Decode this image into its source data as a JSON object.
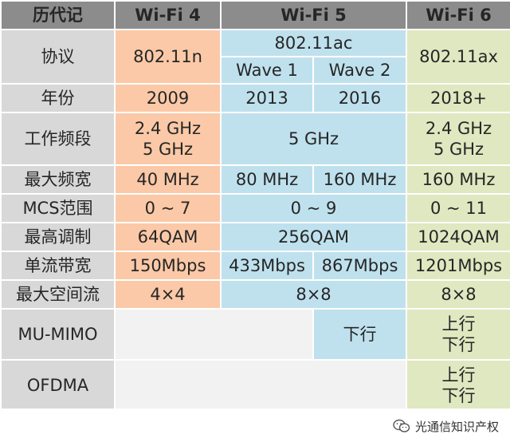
{
  "header": {
    "label": "历代记",
    "wifi4": "Wi-Fi 4",
    "wifi5": "Wi-Fi 5",
    "wifi6": "Wi-Fi 6"
  },
  "rows": {
    "protocol": {
      "label": "协议",
      "wifi4": "802.11n",
      "wifi5": "802.11ac",
      "wave1": "Wave 1",
      "wave2": "Wave 2",
      "wifi6": "802.11ax"
    },
    "year": {
      "label": "年份",
      "wifi4": "2009",
      "wave1": "2013",
      "wave2": "2016",
      "wifi6": "2018+"
    },
    "band": {
      "label": "工作频段",
      "wifi4_a": "2.4 GHz",
      "wifi4_b": "5 GHz",
      "wifi5": "5 GHz",
      "wifi6_a": "2.4 GHz",
      "wifi6_b": "5 GHz"
    },
    "bandwidth": {
      "label": "最大频宽",
      "wifi4": "40 MHz",
      "wave1": "80 MHz",
      "wave2": "160 MHz",
      "wifi6": "160 MHz"
    },
    "mcs": {
      "label": "MCS范围",
      "wifi4": "0 ~ 7",
      "wifi5": "0 ~ 9",
      "wifi6": "0 ~ 11"
    },
    "modulation": {
      "label": "最高调制",
      "wifi4": "64QAM",
      "wifi5": "256QAM",
      "wifi6": "1024QAM"
    },
    "stream_rate": {
      "label": "单流带宽",
      "wifi4": "150Mbps",
      "wave1": "433Mbps",
      "wave2": "867Mbps",
      "wifi6": "1201Mbps"
    },
    "streams": {
      "label": "最大空间流",
      "wifi4": "4×4",
      "wifi5": "8×8",
      "wifi6": "8×8"
    },
    "mu_mimo": {
      "label": "MU-MIMO",
      "wave2": "下行",
      "wifi6_a": "上行",
      "wifi6_b": "下行"
    },
    "ofdma": {
      "label": "OFDMA",
      "wifi6_a": "上行",
      "wifi6_b": "下行"
    }
  },
  "watermark": {
    "text": "光通信知识产权",
    "icon": "wechat-icon"
  },
  "colors": {
    "header": "#8c8c8c",
    "label": "#d8d8d8",
    "wifi4": "#fbc9a7",
    "wifi5": "#bfe1ee",
    "wifi6": "#dfe8c0",
    "blank": "#f2f2f2"
  }
}
